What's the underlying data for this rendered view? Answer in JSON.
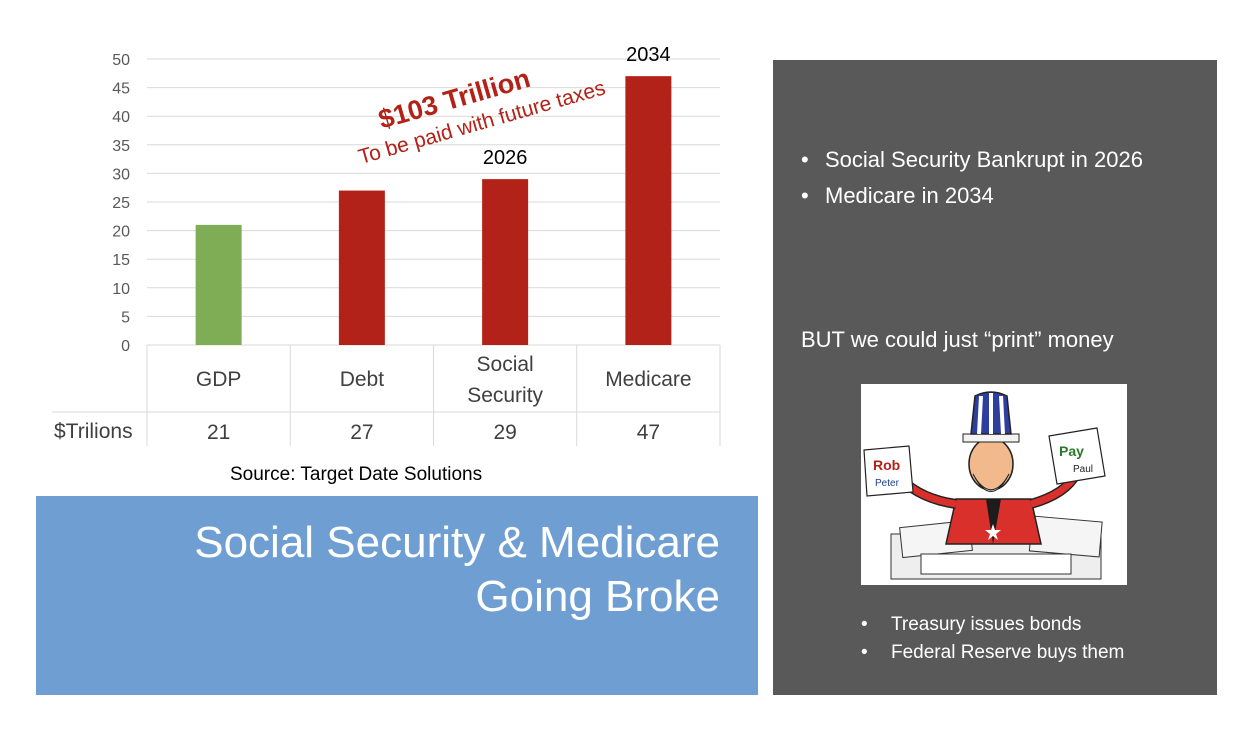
{
  "chart_data": {
    "type": "bar",
    "categories": [
      "GDP",
      "Debt",
      "Social Security",
      "Medicare"
    ],
    "values": [
      21,
      27,
      29,
      47
    ],
    "table_row_label": "$Trilions",
    "ylim": [
      0,
      50
    ],
    "yticks": [
      0,
      5,
      10,
      15,
      20,
      25,
      30,
      35,
      40,
      45,
      50
    ],
    "grid": true,
    "colors": [
      "#7fad56",
      "#b22218",
      "#b22218",
      "#b22218"
    ],
    "bar_labels": [
      "",
      "",
      "2026",
      "2034"
    ],
    "annotation": {
      "main": "$103 Trillion",
      "sub": "To be paid with future taxes",
      "color": "#b22218"
    }
  },
  "source": "Source: Target Date Solutions",
  "title": {
    "line1": "Social Security & Medicare",
    "line2": "Going Broke"
  },
  "panel": {
    "bullets": [
      "Social Security Bankrupt in 2026",
      "Medicare in 2034"
    ],
    "but_text": "BUT we could just “print” money",
    "image": {
      "left_paper_top": "Rob",
      "left_paper_bottom": "Peter",
      "right_paper_top": "Pay",
      "right_paper_bottom": "Paul"
    },
    "sub_bullets": [
      "Treasury issues bonds",
      "Federal Reserve buys them"
    ]
  },
  "colors": {
    "panel_bg": "#595959",
    "title_bg": "#6f9fd2",
    "bar_green": "#7fad56",
    "bar_red": "#b22218"
  }
}
